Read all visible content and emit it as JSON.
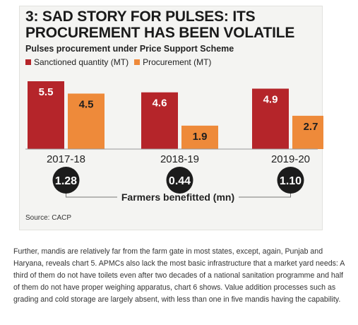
{
  "title": "3: SAD STORY FOR PULSES: ITS PROCUREMENT HAS BEEN VOLATILE",
  "subtitle": "Pulses procurement under Price Support Scheme",
  "source": "Source: CACP",
  "paragraph": "Further, mandis are relatively far from the farm gate in most states, except, again, Punjab and Haryana, reveals chart 5. APMCs also lack the most basic infrastructure that a market yard needs: A third of them do not have toilets even after two decades of a national sanitation programme and half of them do not have proper weighing apparatus, chart 6 shows. Value addition processes such as grading and cold storage are largely absent, with less than one in five mandis having the capability.",
  "colors": {
    "sanctioned": "#b5252a",
    "procurement": "#ee8a3a",
    "badge": "#1c1c1c"
  },
  "chart_data": {
    "type": "bar",
    "title": "3: SAD STORY FOR PULSES: ITS PROCUREMENT HAS BEEN VOLATILE",
    "subtitle": "Pulses procurement under Price Support Scheme",
    "categories": [
      "2017-18",
      "2018-19",
      "2019-20"
    ],
    "series": [
      {
        "name": "Sanctioned quantity (MT)",
        "values": [
          5.5,
          4.6,
          4.9
        ]
      },
      {
        "name": "Procurement (MT)",
        "values": [
          4.5,
          1.9,
          2.7
        ]
      }
    ],
    "value_labels": [
      [
        "5.5",
        "4.6",
        "4.9"
      ],
      [
        "4.5",
        "1.9",
        "2.7"
      ]
    ],
    "ylim": [
      0,
      5.5
    ],
    "grid": false,
    "legend": "top-left",
    "farmers_benefitted": {
      "label": "Farmers benefitted (mn)",
      "values": [
        "1.28",
        "0.44",
        "1.10"
      ]
    }
  }
}
